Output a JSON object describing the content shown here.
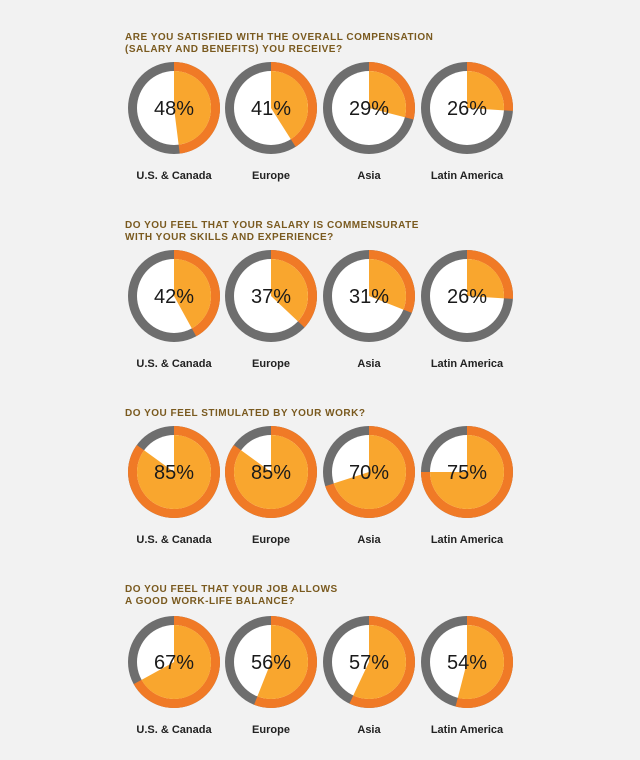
{
  "colors": {
    "ring_dark": "#6e6e6e",
    "ring_orange": "#f07a26",
    "fill_orange": "#f9a62e",
    "inner_bg": "#ffffff",
    "question_text": "#7a5a1f"
  },
  "chart_data": [
    {
      "type": "pie",
      "title": "ARE YOU SATISFIED WITH THE OVERALL COMPENSATION\n(SALARY AND BENEFITS) YOU RECEIVE?",
      "categories": [
        "U.S. & Canada",
        "Europe",
        "Asia",
        "Latin America"
      ],
      "values": [
        48,
        41,
        29,
        26
      ],
      "labels": [
        "48%",
        "41%",
        "29%",
        "26%"
      ]
    },
    {
      "type": "pie",
      "title": "DO YOU FEEL THAT YOUR SALARY IS COMMENSURATE\nWITH YOUR SKILLS AND EXPERIENCE?",
      "categories": [
        "U.S. & Canada",
        "Europe",
        "Asia",
        "Latin America"
      ],
      "values": [
        42,
        37,
        31,
        26
      ],
      "labels": [
        "42%",
        "37%",
        "31%",
        "26%"
      ]
    },
    {
      "type": "pie",
      "title": "DO YOU FEEL STIMULATED BY YOUR WORK?",
      "categories": [
        "U.S. & Canada",
        "Europe",
        "Asia",
        "Latin America"
      ],
      "values": [
        85,
        85,
        70,
        75
      ],
      "labels": [
        "85%",
        "85%",
        "70%",
        "75%"
      ]
    },
    {
      "type": "pie",
      "title": "DO YOU FEEL THAT YOUR JOB ALLOWS\nA GOOD WORK-LIFE BALANCE?",
      "categories": [
        "U.S. & Canada",
        "Europe",
        "Asia",
        "Latin America"
      ],
      "values": [
        67,
        56,
        57,
        54
      ],
      "labels": [
        "67%",
        "56%",
        "57%",
        "54%"
      ]
    }
  ]
}
